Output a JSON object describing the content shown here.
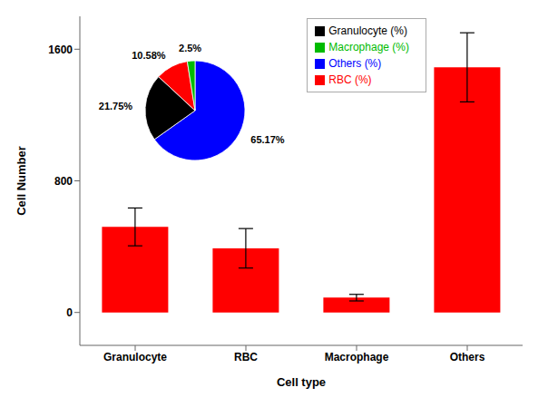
{
  "chart_data": [
    {
      "type": "bar",
      "categories": [
        "Granulocyte",
        "RBC",
        "Macrophage",
        "Others"
      ],
      "values": [
        520,
        390,
        90,
        1490
      ],
      "errors": [
        115,
        120,
        20,
        210
      ],
      "color": "#ff0000",
      "xlabel": "Cell type",
      "ylabel": "Cell Number",
      "ylim": [
        -200,
        1800
      ],
      "yticks": [
        0,
        800,
        1600
      ]
    },
    {
      "type": "pie",
      "categories": [
        "Others (%)",
        "Granulocyte (%)",
        "RBC (%)",
        "Macrophage (%)"
      ],
      "values": [
        65.17,
        21.75,
        10.58,
        2.5
      ],
      "value_labels": [
        "65.17%",
        "21.75%",
        "10.58%",
        "2.5%"
      ],
      "data_labels": true,
      "colors": [
        "#0000ff",
        "#000000",
        "#ff0000",
        "#00bb00"
      ],
      "legend": "upper right"
    }
  ]
}
